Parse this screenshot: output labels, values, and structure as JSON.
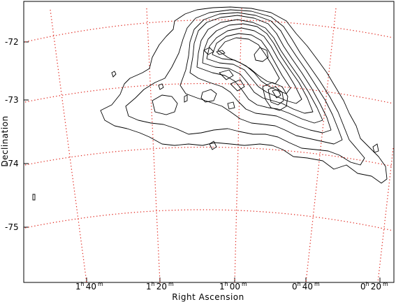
{
  "chart_data": {
    "type": "contour",
    "title": "",
    "xlabel": "Right Ascension",
    "ylabel": "Declination",
    "x_ticks": [
      {
        "h": "1",
        "m": "40"
      },
      {
        "h": "1",
        "m": "20"
      },
      {
        "h": "1",
        "m": "00"
      },
      {
        "h": "0",
        "m": "40"
      },
      {
        "h": "0",
        "m": "20"
      }
    ],
    "x_tick_units": {
      "h": "h",
      "m": "m"
    },
    "y_ticks": [
      "-72",
      "-73",
      "-74",
      "-75"
    ],
    "grid": "dotted-celestial",
    "contour_levels": 13,
    "colors": {
      "grid": "#e0241b",
      "contour": "#000000",
      "frame": "#000000"
    }
  }
}
